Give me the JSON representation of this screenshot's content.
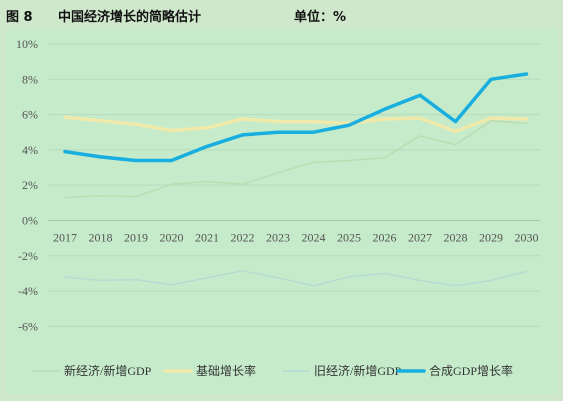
{
  "header": {
    "figure_label": "图 8",
    "title": "中国经济增长的简略估计",
    "unit": "单位：%"
  },
  "chart_data": {
    "type": "line",
    "x": [
      "2017",
      "2018",
      "2019",
      "2020",
      "2021",
      "2022",
      "2023",
      "2024",
      "2025",
      "2026",
      "2027",
      "2028",
      "2029",
      "2030"
    ],
    "ylim": [
      -7,
      10
    ],
    "yticks": [
      10,
      8,
      6,
      4,
      2,
      0,
      -2,
      -4,
      -6
    ],
    "ytick_labels": [
      "10%",
      "8%",
      "6%",
      "4%",
      "2%",
      "0%",
      "-2%",
      "-4%",
      "-6%"
    ],
    "grid": true,
    "legend_position": "bottom",
    "series": [
      {
        "name": "新经济/新增GDP",
        "color": "#bcdcb0",
        "width": 1.5,
        "values": [
          1.3,
          1.4,
          1.35,
          2.05,
          2.2,
          2.05,
          2.7,
          3.3,
          3.4,
          3.55,
          4.8,
          4.3,
          5.65,
          5.5
        ]
      },
      {
        "name": "基础增长率",
        "color": "#f0eaaa",
        "width": 3.5,
        "values": [
          5.85,
          5.65,
          5.45,
          5.1,
          5.25,
          5.75,
          5.6,
          5.6,
          5.5,
          5.75,
          5.8,
          5.05,
          5.8,
          5.75
        ]
      },
      {
        "name": "旧经济/新增GDP",
        "color": "#b4dcd2",
        "width": 1.5,
        "values": [
          -3.2,
          -3.4,
          -3.35,
          -3.65,
          -3.25,
          -2.85,
          -3.25,
          -3.7,
          -3.2,
          -3.0,
          -3.4,
          -3.7,
          -3.4,
          -2.9
        ]
      },
      {
        "name": "合成GDP增长率",
        "color": "#18aee0",
        "width": 3.5,
        "values": [
          3.9,
          3.6,
          3.4,
          3.4,
          4.2,
          4.85,
          5.0,
          5.0,
          5.4,
          6.3,
          7.1,
          5.6,
          8.0,
          8.3
        ]
      }
    ]
  }
}
